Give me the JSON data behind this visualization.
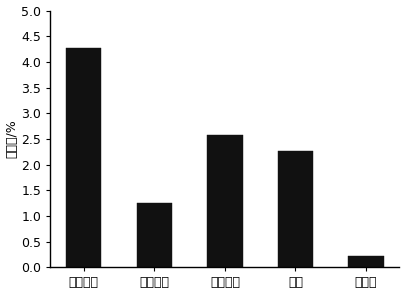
{
  "categories": [
    "无水乙醇",
    "三氯甲烷",
    "乙酸乙酯",
    "丙酮",
    "石油醚"
  ],
  "values": [
    4.28,
    1.25,
    2.58,
    2.27,
    0.23
  ],
  "bar_color": "#111111",
  "ylabel": "萍取率/%",
  "ylim": [
    0,
    5.0
  ],
  "yticks": [
    0.0,
    0.5,
    1.0,
    1.5,
    2.0,
    2.5,
    3.0,
    3.5,
    4.0,
    4.5,
    5.0
  ],
  "bar_width": 0.5,
  "background_color": "#ffffff",
  "edge_color": "#111111",
  "tick_fontsize": 9,
  "label_fontsize": 9
}
